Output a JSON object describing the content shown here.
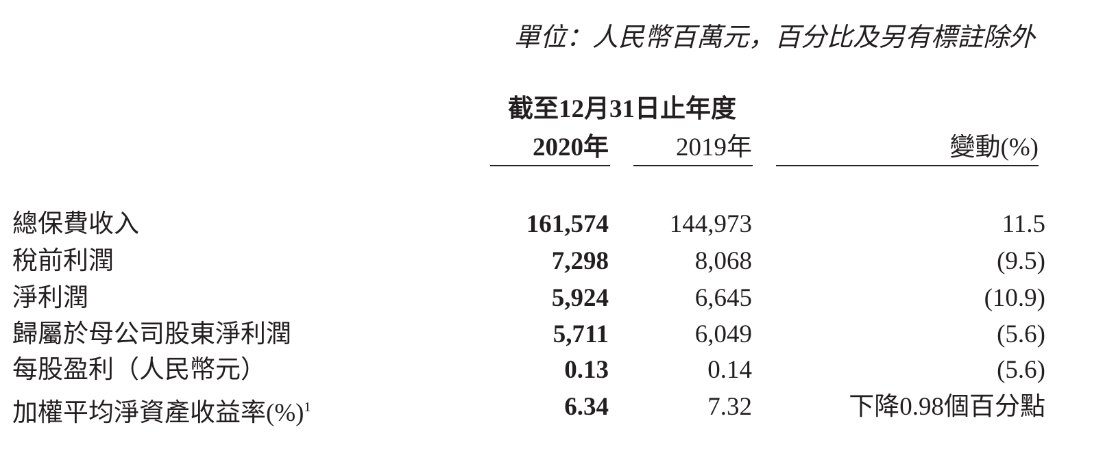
{
  "header": {
    "unit_note": "單位：人民幣百萬元，百分比及另有標註除外",
    "period": "截至12月31日止年度"
  },
  "table": {
    "columns": [
      "2020年",
      "2019年",
      "變動(%)"
    ],
    "rows": [
      [
        "總保費收入",
        "161,574",
        "144,973",
        "11.5"
      ],
      [
        "稅前利潤",
        "7,298",
        "8,068",
        "(9.5)"
      ],
      [
        "淨利潤",
        "5,924",
        "6,645",
        "(10.9)"
      ],
      [
        "歸屬於母公司股東淨利潤",
        "5,711",
        "6,049",
        "(5.6)"
      ],
      [
        "每股盈利（人民幣元）",
        "0.13",
        "0.14",
        "(5.6)"
      ],
      [
        "加權平均淨資產收益率(%)",
        "6.34",
        "7.32",
        "下降0.98個百分點"
      ]
    ],
    "footnote_marks": {
      "5": "1"
    }
  }
}
